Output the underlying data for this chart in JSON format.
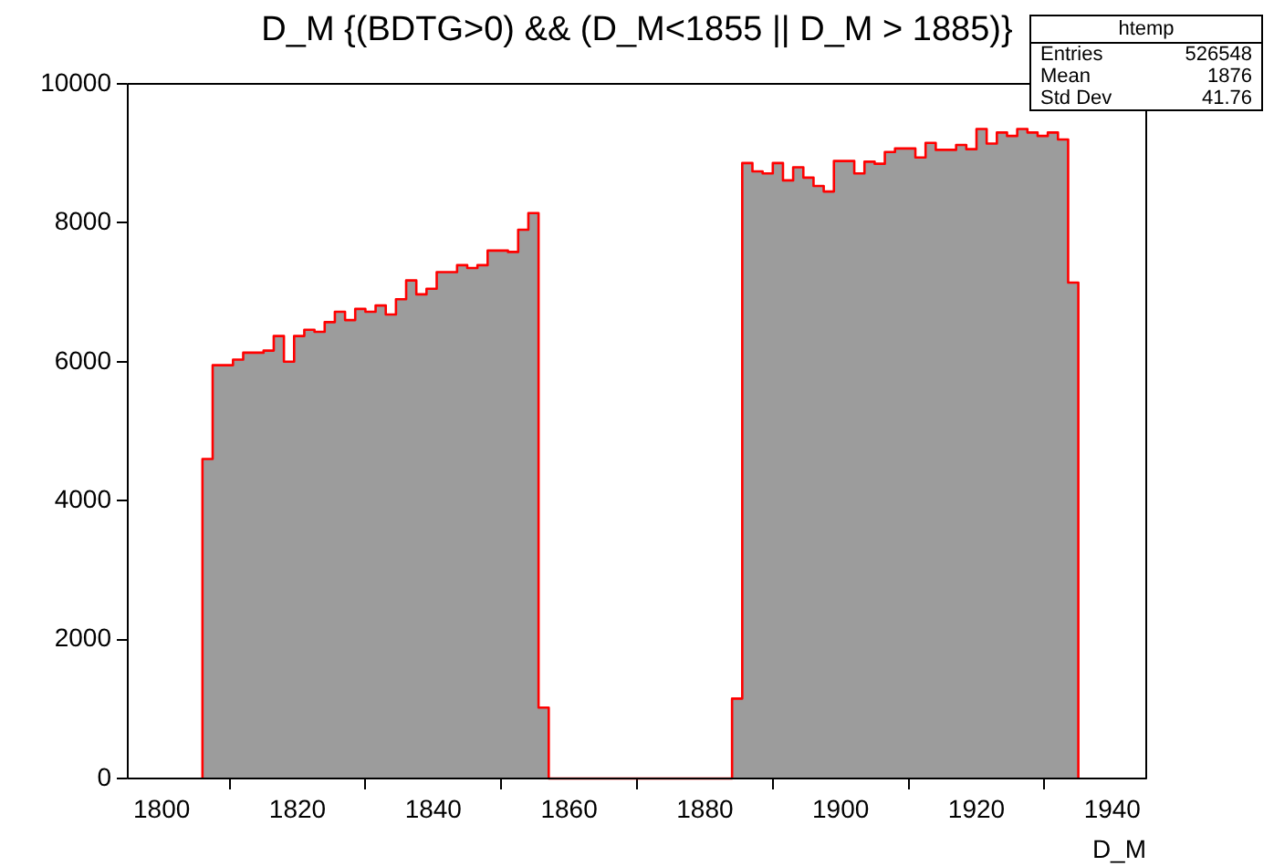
{
  "chart_data": {
    "type": "histogram",
    "title": "D_M {(BDTG>0) && (D_M<1855 || D_M > 1885)}",
    "xlabel": "D_M",
    "bins": [
      1806,
      1807.5,
      1809,
      1810.5,
      1812,
      1813.5,
      1815,
      1816.5,
      1818,
      1819.5,
      1821,
      1822.5,
      1824,
      1825.5,
      1827,
      1828.5,
      1830,
      1831.5,
      1833,
      1834.5,
      1836,
      1837.5,
      1839,
      1840.5,
      1842,
      1843.5,
      1845,
      1846.5,
      1848,
      1849.5,
      1851,
      1852.5,
      1854,
      1855.5,
      1857,
      1858.5,
      1860,
      1861.5,
      1863,
      1864.5,
      1866,
      1867.5,
      1869,
      1870.5,
      1872,
      1873.5,
      1875,
      1876.5,
      1878,
      1879.5,
      1881,
      1882.5,
      1884,
      1885.5,
      1887,
      1888.5,
      1890,
      1891.5,
      1893,
      1894.5,
      1896,
      1897.5,
      1899,
      1900.5,
      1902,
      1903.5,
      1905,
      1906.5,
      1908,
      1909.5,
      1911,
      1912.5,
      1914,
      1915.5,
      1917,
      1918.5,
      1920,
      1921.5,
      1923,
      1924.5,
      1926,
      1927.5,
      1929,
      1930.5,
      1932,
      1933.5,
      1935
    ],
    "values": [
      4600,
      5950,
      5950,
      6030,
      6130,
      6130,
      6160,
      6370,
      6000,
      6370,
      6460,
      6430,
      6570,
      6720,
      6600,
      6760,
      6720,
      6810,
      6680,
      6900,
      7170,
      6970,
      7050,
      7290,
      7290,
      7390,
      7350,
      7390,
      7600,
      7600,
      7580,
      7900,
      8140,
      1020,
      0,
      0,
      0,
      0,
      0,
      0,
      0,
      0,
      0,
      0,
      0,
      0,
      0,
      0,
      0,
      0,
      0,
      0,
      1150,
      8860,
      8740,
      8710,
      8860,
      8610,
      8800,
      8650,
      8530,
      8450,
      8890,
      8890,
      8710,
      8880,
      8850,
      9020,
      9070,
      9070,
      8940,
      9150,
      9050,
      9050,
      9120,
      9060,
      9350,
      9140,
      9300,
      9250,
      9350,
      9300,
      9250,
      9300,
      9200,
      7140
    ],
    "color": "#9c9c9c",
    "xlim": [
      1795,
      1945
    ],
    "xticks": [
      1800,
      1820,
      1840,
      1860,
      1880,
      1900,
      1920,
      1940
    ],
    "ylim": [
      0,
      10000
    ],
    "yticks": [
      0,
      2000,
      4000,
      6000,
      8000,
      10000
    ],
    "annotations": [
      "htemp",
      "Entries",
      "526548",
      "Mean",
      "1876",
      "Std Dev",
      "41.76"
    ]
  }
}
